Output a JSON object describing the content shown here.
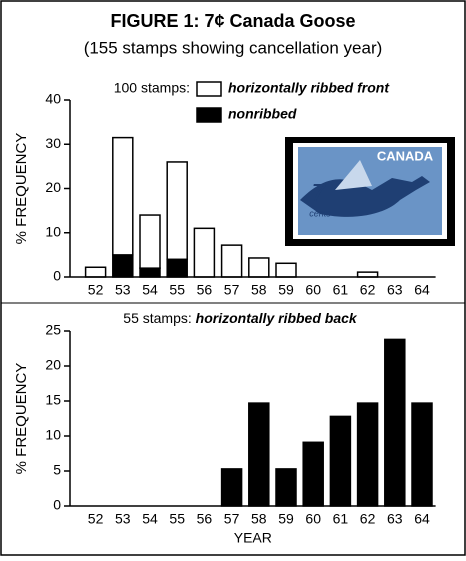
{
  "figure": {
    "title": "FIGURE 1: 7¢ Canada Goose",
    "subtitle": "(155 stamps showing cancellation year)"
  },
  "stamp": {
    "country": "CANADA",
    "denomination": "7",
    "unit": "cents"
  },
  "chart_data": [
    {
      "type": "bar",
      "stacked": true,
      "legend_title": "100 stamps:",
      "y_label": "% FREQUENCY",
      "categories": [
        "52",
        "53",
        "54",
        "55",
        "56",
        "57",
        "58",
        "59",
        "60",
        "61",
        "62",
        "63",
        "64"
      ],
      "series": [
        {
          "name": "nonribbed",
          "color": "#000000",
          "values": [
            0,
            5,
            2,
            4,
            0,
            0,
            0,
            0,
            0,
            0,
            0,
            0,
            0
          ]
        },
        {
          "name": "horizontally ribbed front",
          "color": "#ffffff",
          "values": [
            2.2,
            26.5,
            12,
            22,
            11,
            7.2,
            4.3,
            3.1,
            0,
            0,
            1.1,
            0,
            0
          ]
        }
      ],
      "ylim": [
        0,
        40
      ],
      "yticks": [
        0,
        10,
        20,
        30,
        40
      ]
    },
    {
      "type": "bar",
      "title": "55 stamps:",
      "title_emphasis": "horizontally ribbed back",
      "y_label": "% FREQUENCY",
      "x_label": "YEAR",
      "categories": [
        "52",
        "53",
        "54",
        "55",
        "56",
        "57",
        "58",
        "59",
        "60",
        "61",
        "62",
        "63",
        "64"
      ],
      "series": [
        {
          "name": "horizontally ribbed back",
          "color": "#000000",
          "values": [
            0,
            0,
            0,
            0,
            0,
            5.3,
            14.7,
            5.3,
            9.1,
            12.8,
            14.7,
            23.8,
            14.7
          ]
        }
      ],
      "ylim": [
        0,
        25
      ],
      "yticks": [
        0,
        5,
        10,
        15,
        20,
        25
      ]
    }
  ]
}
